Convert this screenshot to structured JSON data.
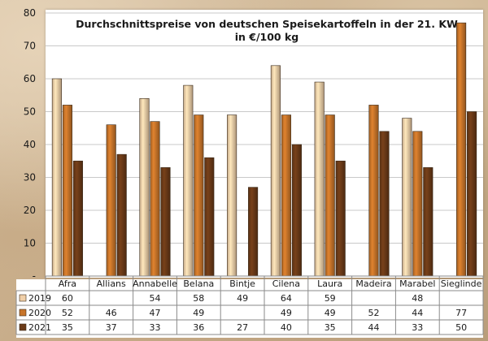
{
  "chart_data": {
    "type": "bar",
    "title": "Durchschnittspreise von deutschen Speisekartoffeln in der 21. KW",
    "subtitle": "in €/100 kg",
    "categories": [
      "Afra",
      "Allians",
      "Annabelle",
      "Belana",
      "Bintje",
      "Cilena",
      "Laura",
      "Madeira",
      "Marabel",
      "Sieglinde"
    ],
    "series": [
      {
        "name": "2019",
        "color": "#f0cfa8",
        "values": [
          60,
          null,
          54,
          58,
          49,
          64,
          59,
          null,
          48,
          null
        ]
      },
      {
        "name": "2020",
        "color": "#c8752a",
        "values": [
          52,
          46,
          47,
          49,
          null,
          49,
          49,
          52,
          44,
          77
        ]
      },
      {
        "name": "2021",
        "color": "#6b3a17",
        "values": [
          35,
          37,
          33,
          36,
          27,
          40,
          35,
          44,
          33,
          50
        ]
      }
    ],
    "y_ticks": [
      "-",
      "10",
      "20",
      "30",
      "40",
      "50",
      "60",
      "70",
      "80"
    ],
    "ylim": [
      0,
      80
    ],
    "grid": true,
    "legend": "data table below chart"
  }
}
